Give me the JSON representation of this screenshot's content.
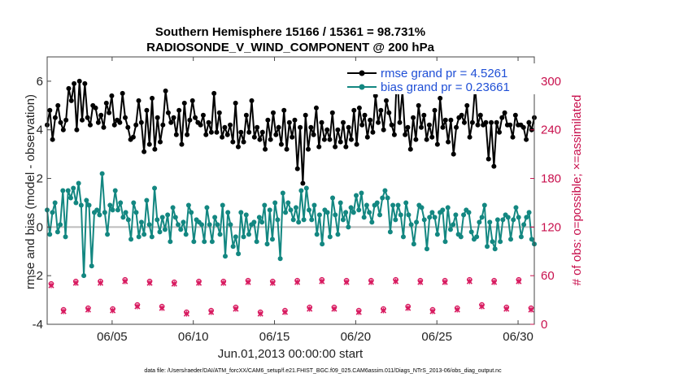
{
  "chart_data": {
    "type": "line",
    "title_line1": "Southern Hemisphere 15166 / 15361 = 98.731%",
    "title_line2": "RADIOSONDE_V_WIND_COMPONENT @ 200 hPa",
    "xlabel": "Jun.01,2013 00:00:00 start",
    "ylabel_left": "rmse and bias (model - observation)",
    "ylabel_right": "# of obs: o=possible; ×=assimilated",
    "x_range_days": [
      1,
      31
    ],
    "xticks": [
      5,
      10,
      15,
      20,
      25,
      30
    ],
    "xtick_labels": [
      "06/05",
      "06/10",
      "06/15",
      "06/20",
      "06/25",
      "06/30"
    ],
    "ylim_left": [
      -4,
      7
    ],
    "yticks_left": [
      "-4",
      "-2",
      "0",
      "2",
      "4",
      "6"
    ],
    "ylim_right": [
      0,
      330
    ],
    "yticks_right": [
      "0",
      "60",
      "120",
      "180",
      "240",
      "300"
    ],
    "series": [
      {
        "name": "rmse grand pr = 4.5261",
        "color": "#000000",
        "values": [
          4.2,
          4.8,
          3.6,
          4.5,
          5.0,
          4.3,
          4.0,
          4.4,
          5.7,
          5.2,
          5.9,
          4.0,
          6.0,
          4.4,
          5.9,
          4.5,
          4.2,
          5.0,
          4.9,
          4.3,
          4.6,
          4.1,
          5.1,
          4.7,
          5.4,
          4.2,
          4.4,
          4.3,
          5.5,
          4.5,
          4.1,
          3.6,
          3.7,
          4.2,
          5.2,
          4.3,
          3.1,
          4.8,
          3.4,
          5.3,
          3.2,
          4.5,
          3.5,
          4.2,
          5.6,
          4.7,
          4.3,
          4.5,
          3.8,
          4.8,
          3.4,
          5.1,
          3.8,
          4.4,
          5.2,
          4.5,
          4.3,
          4.2,
          4.6,
          3.8,
          4.3,
          3.9,
          5.5,
          3.9,
          4.7,
          3.7,
          4.1,
          3.8,
          4.2,
          3.5,
          5.1,
          3.3,
          3.9,
          3.5,
          4.6,
          3.9,
          5.2,
          3.7,
          4.1,
          3.6,
          3.9,
          3.2,
          4.4,
          3.6,
          4.7,
          3.8,
          4.1,
          3.4,
          4.8,
          3.2,
          4.3,
          3.7,
          4.4,
          2.4,
          4.1,
          1.8,
          4.6,
          3.2,
          4.1,
          3.8,
          4.9,
          3.3,
          4.3,
          3.6,
          4.0,
          3.6,
          4.7,
          3.3,
          4.0,
          3.5,
          4.3,
          3.3,
          4.1,
          3.6,
          4.8,
          3.4,
          4.9,
          4.2,
          4.6,
          3.7,
          4.4,
          3.9,
          5.4,
          4.3,
          4.8,
          4.0,
          5.2,
          4.7,
          4.2,
          3.8,
          6.4,
          4.3,
          5.6,
          3.8,
          4.1,
          3.2,
          4.5,
          3.6,
          5.0,
          4.1,
          4.6,
          3.6,
          4.2,
          3.7,
          4.8,
          3.4,
          5.3,
          4.1,
          4.4,
          3.5,
          4.4,
          3.0,
          4.1,
          4.5,
          4.6,
          4.3,
          5.0,
          3.7,
          4.3,
          5.8,
          4.2,
          4.6,
          4.2,
          4.3,
          2.8,
          4.3,
          2.5,
          4.3,
          3.9,
          4.5,
          4.7,
          4.2,
          4.2,
          3.7,
          4.6,
          4.2,
          4.2,
          4.1,
          3.6,
          4.3,
          4.0,
          4.5
        ]
      },
      {
        "name": "bias grand pr = 0.23661",
        "color": "#138781",
        "values": [
          0.7,
          -0.3,
          0.6,
          1.0,
          -0.2,
          0.1,
          1.5,
          -0.4,
          1.5,
          1.2,
          1.6,
          1.0,
          1.8,
          0.9,
          -2.0,
          1.1,
          0.9,
          -1.6,
          0.6,
          0.7,
          0.5,
          2.2,
          0.6,
          -0.3,
          0.9,
          0.7,
          1.5,
          0.7,
          1.0,
          0.4,
          0.6,
          0.3,
          -0.5,
          1.0,
          0.6,
          -0.4,
          0.2,
          -0.3,
          1.1,
          0.1,
          -0.4,
          1.6,
          0.3,
          -0.2,
          0.4,
          -0.1,
          0.5,
          -0.6,
          0.8,
          0.4,
          0.1,
          -0.1,
          0.2,
          -0.3,
          0.9,
          0.6,
          -0.6,
          0.3,
          0.2,
          0.1,
          -0.6,
          0.8,
          0.1,
          -0.6,
          0.4,
          0.1,
          -0.3,
          0.9,
          -1.2,
          0.6,
          0.1,
          -0.8,
          -0.4,
          -1.1,
          0.6,
          -0.4,
          0.5,
          -0.3,
          0.1,
          0.2,
          -0.6,
          0.4,
          0.2,
          0.9,
          -0.7,
          0.7,
          -0.5,
          1.0,
          0.3,
          -1.3,
          1.4,
          0.6,
          1.0,
          0.7,
          0.3,
          0.8,
          0.2,
          1.5,
          0.3,
          1.6,
          0.7,
          0.3,
          0.9,
          -0.3,
          0.5,
          -0.7,
          0.7,
          0.6,
          -0.4,
          1.2,
          0.5,
          -0.3,
          1.0,
          0.3,
          0.6,
          0.0,
          0.8,
          0.6,
          1.3,
          0.7,
          1.4,
          0.4,
          0.9,
          0.6,
          0.2,
          0.9,
          1.0,
          0.5,
          1.2,
          1.5,
          1.2,
          -0.2,
          0.9,
          0.3,
          0.9,
          0.5,
          -0.4,
          1.0,
          0.5,
          0.1,
          -0.7,
          0.2,
          0.9,
          0.8,
          0.3,
          -0.9,
          0.4,
          0.6,
          0.4,
          -0.3,
          0.6,
          0.7,
          -0.6,
          0.8,
          -0.1,
          0.1,
          0.5,
          -0.3,
          -0.4,
          0.5,
          0.7,
          0.6,
          -0.2,
          -0.5,
          -0.4,
          0.2,
          0.4,
          0.9,
          -0.8,
          0.2,
          -0.6,
          -0.9,
          0.3,
          -0.6,
          0.3,
          0.5,
          0.4,
          -0.5,
          0.3,
          0.8,
          0.4,
          -0.4,
          0.1,
          0.4,
          0.6,
          -0.5,
          -0.7
        ]
      }
    ],
    "obs_possible": [
      50,
      18,
      53,
      20,
      53,
      19,
      55,
      24,
      53,
      22,
      52,
      15,
      53,
      17,
      53,
      21,
      54,
      15,
      53,
      17,
      54,
      21,
      55,
      21,
      54,
      17,
      54,
      19,
      55,
      22,
      54,
      18,
      54,
      20,
      55,
      24,
      54,
      21,
      55,
      20
    ],
    "obs_assimilated": [
      48,
      16,
      51,
      18,
      51,
      17,
      53,
      22,
      51,
      20,
      50,
      13,
      51,
      15,
      51,
      19,
      52,
      13,
      51,
      15,
      52,
      19,
      53,
      19,
      52,
      15,
      52,
      17,
      53,
      20,
      52,
      16,
      52,
      18,
      53,
      22,
      52,
      19,
      53,
      18
    ]
  },
  "footnote": "data file: /Users/raeder/DAI/ATM_forcXX/CAM6_setup/f.e21.FHIST_BGC.f09_025.CAM6assim.011/Diags_NTrS_2013-06/obs_diag_output.nc"
}
